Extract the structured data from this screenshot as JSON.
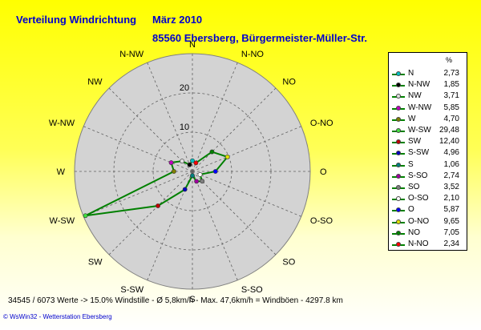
{
  "header": {
    "title": "Verteilung Windrichtung",
    "date": "März 2010",
    "location": "85560 Ebersberg, Bürgermeister-Müller-Str."
  },
  "chart_data": {
    "type": "radar",
    "directions": [
      "N",
      "N-NO",
      "NO",
      "O-NO",
      "O",
      "O-SO",
      "SO",
      "S-SO",
      "S",
      "S-SW",
      "SW",
      "W-SW",
      "W",
      "W-NW",
      "NW",
      "N-NW"
    ],
    "values": [
      2.73,
      2.34,
      7.05,
      9.65,
      5.87,
      2.1,
      3.52,
      2.74,
      1.06,
      4.96,
      12.4,
      29.48,
      4.7,
      5.85,
      3.71,
      1.85
    ],
    "radial_ticks": [
      10,
      20
    ],
    "rmax": 30,
    "grid": true,
    "series_color": "#008000",
    "legend_unit": "%",
    "legend": [
      {
        "label": "N",
        "value": "2,73",
        "color": "#00c0c0"
      },
      {
        "label": "N-NW",
        "value": "1,85",
        "color": "#000000"
      },
      {
        "label": "NW",
        "value": "3,71",
        "color": "#e0e0e0"
      },
      {
        "label": "W-NW",
        "value": "5,85",
        "color": "#c000c0"
      },
      {
        "label": "W",
        "value": "4,70",
        "color": "#808000"
      },
      {
        "label": "W-SW",
        "value": "29,48",
        "color": "#40e040"
      },
      {
        "label": "SW",
        "value": "12,40",
        "color": "#c00000"
      },
      {
        "label": "S-SW",
        "value": "4,96",
        "color": "#0000c0"
      },
      {
        "label": "S",
        "value": "1,06",
        "color": "#008080"
      },
      {
        "label": "S-SO",
        "value": "2,74",
        "color": "#a000a0"
      },
      {
        "label": "SO",
        "value": "3,52",
        "color": "#808080"
      },
      {
        "label": "O-SO",
        "value": "2,10",
        "color": "#ffffff"
      },
      {
        "label": "O",
        "value": "5,87",
        "color": "#0000ff"
      },
      {
        "label": "O-NO",
        "value": "9,65",
        "color": "#e0e000"
      },
      {
        "label": "NO",
        "value": "7,05",
        "color": "#008000"
      },
      {
        "label": "N-NO",
        "value": "2,34",
        "color": "#ff0000"
      }
    ]
  },
  "footer": {
    "stats": "34545 / 6073 Werte  -> 15.0% Windstille   -   Ø 5,8km/h  -  Max. 47,6km/h = Windböen   -   4297.8 km",
    "credit": "© WsWin32  -  Wetterstation Ebersberg"
  }
}
